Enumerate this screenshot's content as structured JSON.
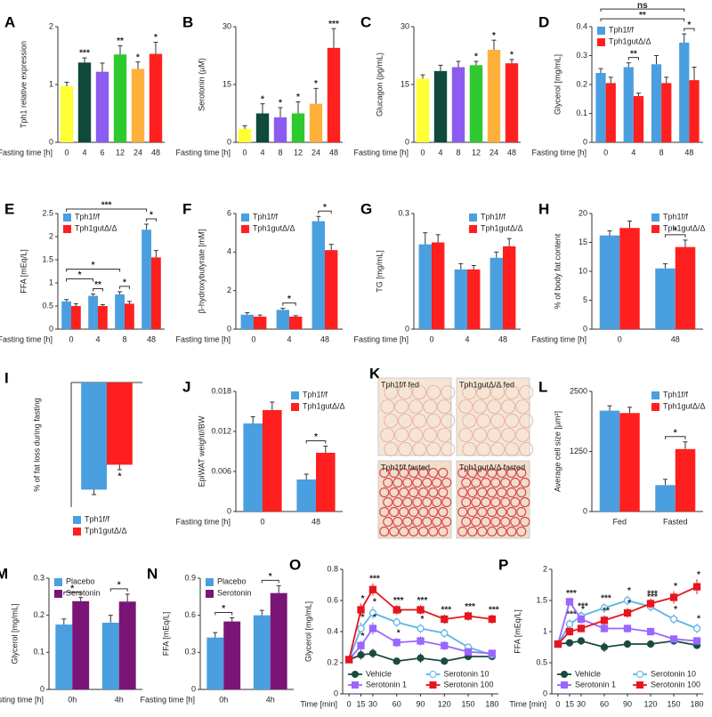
{
  "chart_data": [
    {
      "type": "bar",
      "title": "A",
      "ylabel": "Tph1 relative expression",
      "xlabel": "Fasting time [h]",
      "categories": [
        "0",
        "4",
        "6",
        "12",
        "24",
        "48"
      ],
      "values": [
        0.97,
        1.38,
        1.22,
        1.52,
        1.27,
        1.53
      ],
      "errors": [
        0.07,
        0.08,
        0.15,
        0.15,
        0.12,
        0.2
      ],
      "colors": [
        "#ffff33",
        "#0f4a3c",
        "#8c5cf0",
        "#2ec92e",
        "#ffb03b",
        "#ff2020"
      ],
      "significance": [
        null,
        "***",
        null,
        "**",
        "*",
        "*"
      ],
      "ylim": [
        0,
        2
      ],
      "yticks": [
        0,
        1,
        2
      ]
    },
    {
      "type": "bar",
      "title": "B",
      "ylabel": "Serotonin (µM)",
      "xlabel": "Fasting time [h]",
      "categories": [
        "0",
        "4",
        "8",
        "12",
        "24",
        "48"
      ],
      "values": [
        3.5,
        7.5,
        6.5,
        7.5,
        10,
        24.5
      ],
      "errors": [
        0.8,
        2.5,
        2.5,
        3,
        4,
        5
      ],
      "colors": [
        "#ffff33",
        "#0f4a3c",
        "#8c5cf0",
        "#2ec92e",
        "#ffb03b",
        "#ff2020"
      ],
      "significance": [
        null,
        "*",
        "*",
        "*",
        "*",
        "***"
      ],
      "ylim": [
        0,
        30
      ],
      "yticks": [
        0,
        15,
        30
      ]
    },
    {
      "type": "bar",
      "title": "C",
      "ylabel": "Glucagon (pg/mL)",
      "xlabel": "Fasting time [h]",
      "categories": [
        "0",
        "4",
        "8",
        "12",
        "24",
        "48"
      ],
      "values": [
        16.5,
        18.5,
        19.5,
        20,
        24,
        20.5
      ],
      "errors": [
        1,
        1.5,
        1.5,
        1,
        2.5,
        1
      ],
      "colors": [
        "#ffff33",
        "#0f4a3c",
        "#8c5cf0",
        "#2ec92e",
        "#ffb03b",
        "#ff2020"
      ],
      "significance": [
        null,
        null,
        null,
        "*",
        "*",
        "*"
      ],
      "ylim": [
        0,
        30
      ],
      "yticks": [
        0,
        15,
        30
      ]
    },
    {
      "type": "bar",
      "title": "D",
      "ylabel": "Glycerol [mg/mL]",
      "xlabel": "Fasting time [h]",
      "categories": [
        "0",
        "4",
        "8",
        "48"
      ],
      "legend": "top-left",
      "series": [
        {
          "name": "Tph1f/f",
          "color": "#4a9fe0",
          "values": [
            0.24,
            0.26,
            0.27,
            0.345
          ],
          "errors": [
            0.015,
            0.015,
            0.03,
            0.03
          ]
        },
        {
          "name": "Tph1gutΔ/Δ",
          "color": "#ff1f1f",
          "values": [
            0.205,
            0.16,
            0.205,
            0.215
          ],
          "errors": [
            0.02,
            0.01,
            0.02,
            0.045
          ]
        }
      ],
      "group_significance": [
        null,
        "**",
        null,
        "*"
      ],
      "brackets": [
        {
          "text": "**",
          "from": "0",
          "to": "48"
        },
        {
          "text": "ns",
          "from": "0",
          "to": "48"
        }
      ],
      "ylim": [
        0,
        0.4
      ],
      "yticks": [
        0,
        0.1,
        0.2,
        0.3,
        0.4
      ]
    },
    {
      "type": "bar",
      "title": "E",
      "ylabel": "FFA [mEq/L]",
      "xlabel": "Fasting time [h]",
      "categories": [
        "0",
        "4",
        "8",
        "48"
      ],
      "legend": "top-left",
      "series": [
        {
          "name": "Tph1f/f",
          "color": "#4a9fe0",
          "values": [
            0.6,
            0.72,
            0.75,
            2.15
          ],
          "errors": [
            0.04,
            0.04,
            0.06,
            0.12
          ]
        },
        {
          "name": "Tph1gutΔ/Δ",
          "color": "#ff1f1f",
          "values": [
            0.5,
            0.5,
            0.55,
            1.55
          ],
          "errors": [
            0.05,
            0.03,
            0.05,
            0.15
          ]
        }
      ],
      "group_significance": [
        null,
        "**",
        "*",
        "*"
      ],
      "brackets": [
        {
          "text": "*",
          "from": "0",
          "to": "4"
        },
        {
          "text": "*",
          "from": "0",
          "to": "8"
        },
        {
          "text": "***",
          "from": "0",
          "to": "48"
        }
      ],
      "ylim": [
        0,
        2.5
      ],
      "yticks": [
        0,
        0.5,
        1,
        1.5,
        2,
        2.5
      ]
    },
    {
      "type": "bar",
      "title": "F",
      "ylabel": "β-hydroxybutyrate [mM]",
      "xlabel": "Fasting time [h]",
      "categories": [
        "0",
        "4",
        "48"
      ],
      "legend": "top-left",
      "series": [
        {
          "name": "Tph1f/f",
          "color": "#4a9fe0",
          "values": [
            0.75,
            1.0,
            5.6
          ],
          "errors": [
            0.1,
            0.08,
            0.25
          ]
        },
        {
          "name": "Tph1gutΔ/Δ",
          "color": "#ff1f1f",
          "values": [
            0.65,
            0.65,
            4.1
          ],
          "errors": [
            0.08,
            0.05,
            0.3
          ]
        }
      ],
      "group_significance": [
        null,
        "*",
        "*"
      ],
      "ylim": [
        0,
        6
      ],
      "yticks": [
        0,
        2,
        4,
        6
      ]
    },
    {
      "type": "bar",
      "title": "G",
      "ylabel": "TG [mg/mL]",
      "xlabel": "Fasting time [h]",
      "categories": [
        "0",
        "4",
        "48"
      ],
      "legend": "top-right",
      "series": [
        {
          "name": "Tph1f/f",
          "color": "#4a9fe0",
          "values": [
            0.22,
            0.155,
            0.185
          ],
          "errors": [
            0.03,
            0.015,
            0.015
          ]
        },
        {
          "name": "Tph1gutΔ/Δ",
          "color": "#ff1f1f",
          "values": [
            0.225,
            0.155,
            0.215
          ],
          "errors": [
            0.02,
            0.01,
            0.02
          ]
        }
      ],
      "ylim": [
        0,
        0.3
      ],
      "yticks": [
        0,
        0.3
      ]
    },
    {
      "type": "bar",
      "title": "H",
      "ylabel": "% of body fat content",
      "xlabel": "Fasting time [h]",
      "categories": [
        "0",
        "48"
      ],
      "legend": "top-right",
      "series": [
        {
          "name": "Tph1f/f",
          "color": "#4a9fe0",
          "values": [
            16.2,
            10.5
          ],
          "errors": [
            0.8,
            0.8
          ]
        },
        {
          "name": "Tph1gutΔ/Δ",
          "color": "#ff1f1f",
          "values": [
            17.5,
            14.2
          ],
          "errors": [
            1.2,
            1.2
          ]
        }
      ],
      "group_significance": [
        null,
        "*"
      ],
      "ylim": [
        0,
        20
      ],
      "yticks": [
        0,
        5,
        10,
        15,
        20
      ]
    },
    {
      "type": "bar",
      "title": "I",
      "ylabel": "% of fat loss during fasting",
      "legend": "bottom",
      "series": [
        {
          "name": "Tph1f/f",
          "color": "#4a9fe0",
          "values": [
            -43
          ],
          "errors": [
            2
          ]
        },
        {
          "name": "Tph1gutΔ/Δ",
          "color": "#ff1f1f",
          "values": [
            -33
          ],
          "errors": [
            2
          ],
          "significance": [
            "*"
          ]
        }
      ],
      "ylim": [
        -50,
        0
      ]
    },
    {
      "type": "bar",
      "title": "J",
      "ylabel": "EpiWAT weight//BW",
      "xlabel": "Fasting time [h]",
      "categories": [
        "0",
        "48"
      ],
      "legend": "top-right",
      "series": [
        {
          "name": "Tph1f/f",
          "color": "#4a9fe0",
          "values": [
            0.0132,
            0.0048
          ],
          "errors": [
            0.001,
            0.0008
          ]
        },
        {
          "name": "Tph1gutΔ/Δ",
          "color": "#ff1f1f",
          "values": [
            0.0152,
            0.0088
          ],
          "errors": [
            0.0012,
            0.001
          ]
        }
      ],
      "group_significance": [
        null,
        "*"
      ],
      "ylim": [
        0,
        0.018
      ],
      "yticks": [
        0,
        0.006,
        0.012,
        0.018
      ]
    },
    {
      "type": "image",
      "title": "K",
      "labels": [
        "Tph1f/f fed",
        "Tph1gutΔ/Δ fed",
        "Tph1f/f fasted",
        "Tph1gutΔ/Δ fasted"
      ]
    },
    {
      "type": "bar",
      "title": "L",
      "ylabel": "Average cell size [µm²]",
      "categories": [
        "Fed",
        "Fasted"
      ],
      "legend": "top-right",
      "series": [
        {
          "name": "Tph1f/f",
          "color": "#4a9fe0",
          "values": [
            2100,
            550
          ],
          "errors": [
            100,
            120
          ]
        },
        {
          "name": "Tph1gutΔ/Δ",
          "color": "#ff1f1f",
          "values": [
            2050,
            1300
          ],
          "errors": [
            120,
            150
          ]
        }
      ],
      "group_significance": [
        null,
        "*"
      ],
      "ylim": [
        0,
        2500
      ],
      "yticks": [
        0,
        1250,
        2500
      ]
    },
    {
      "type": "bar",
      "title": "M",
      "ylabel": "Glycerol [mg/mL]",
      "xlabel": "Fasting time [h]",
      "categories": [
        "0h",
        "4h"
      ],
      "legend": "top-left",
      "series": [
        {
          "name": "Placebo",
          "color": "#4a9fe0",
          "values": [
            0.175,
            0.18
          ],
          "errors": [
            0.015,
            0.02
          ]
        },
        {
          "name": "Serotonin",
          "color": "#7a1577",
          "values": [
            0.238,
            0.237
          ],
          "errors": [
            0.01,
            0.02
          ]
        }
      ],
      "group_significance": [
        "*",
        "*"
      ],
      "ylim": [
        0,
        0.3
      ],
      "yticks": [
        0,
        0.1,
        0.2,
        0.3
      ]
    },
    {
      "type": "bar",
      "title": "N",
      "ylabel": "FFA [mEq/L]",
      "xlabel": "Fasting time [h]",
      "categories": [
        "0h",
        "4h"
      ],
      "legend": "top-left",
      "series": [
        {
          "name": "Placebo",
          "color": "#4a9fe0",
          "values": [
            0.42,
            0.6
          ],
          "errors": [
            0.04,
            0.04
          ]
        },
        {
          "name": "Serotonin",
          "color": "#7a1577",
          "values": [
            0.55,
            0.78
          ],
          "errors": [
            0.03,
            0.06
          ]
        }
      ],
      "group_significance": [
        "*",
        "*"
      ],
      "ylim": [
        0,
        0.9
      ],
      "yticks": [
        0,
        0.3,
        0.6,
        0.9
      ]
    },
    {
      "type": "line",
      "title": "O",
      "ylabel": "Glycerol [mg/mL]",
      "xlabel": "Time [min]",
      "legend": "bottom-inside",
      "x": [
        0,
        15,
        30,
        60,
        90,
        120,
        150,
        180
      ],
      "xlim": [
        -8,
        188
      ],
      "xticks": [
        0,
        15,
        30,
        60,
        90,
        120,
        150,
        180
      ],
      "ylim": [
        0,
        0.8
      ],
      "yticks": [
        0,
        0.2,
        0.4,
        0.6,
        0.8
      ],
      "series": [
        {
          "name": "Vehicle",
          "color": "#1a4a40",
          "marker": "circle",
          "values": [
            0.22,
            0.25,
            0.26,
            0.21,
            0.23,
            0.21,
            0.24,
            0.24
          ],
          "errors": [
            0.02,
            0.03,
            0.03,
            0.02,
            0.03,
            0.02,
            0.02,
            0.02
          ]
        },
        {
          "name": "Serotonin 10",
          "color": "#5ab4e8",
          "marker": "circle",
          "hollow": true,
          "values": [
            0.22,
            0.42,
            0.52,
            0.46,
            0.42,
            0.39,
            0.3,
            0.25
          ],
          "errors": [
            0.02,
            0.04,
            0.04,
            0.03,
            0.03,
            0.03,
            0.02,
            0.02
          ],
          "significance": [
            null,
            "*",
            "*",
            "**",
            "*",
            "*",
            null,
            null
          ]
        },
        {
          "name": "Serotonin 1",
          "color": "#9966ff",
          "marker": "square",
          "values": [
            0.22,
            0.31,
            0.42,
            0.33,
            0.34,
            0.31,
            0.27,
            0.26
          ],
          "errors": [
            0.02,
            0.03,
            0.04,
            0.03,
            0.03,
            0.03,
            0.02,
            0.02
          ],
          "significance": [
            null,
            "*",
            "*",
            "*",
            null,
            null,
            null,
            null
          ]
        },
        {
          "name": "Serotonin 100",
          "color": "#e8141e",
          "marker": "square",
          "values": [
            0.22,
            0.54,
            0.67,
            0.54,
            0.54,
            0.48,
            0.5,
            0.48
          ],
          "errors": [
            0.02,
            0.04,
            0.04,
            0.03,
            0.03,
            0.03,
            0.03,
            0.03
          ],
          "significance": [
            null,
            "*",
            "***",
            "***",
            "***",
            "***",
            "***",
            "***"
          ]
        }
      ]
    },
    {
      "type": "line",
      "title": "P",
      "ylabel": "FFA [mEq/L]",
      "xlabel": "Time [min]",
      "legend": "bottom-inside",
      "x": [
        0,
        15,
        30,
        60,
        90,
        120,
        150,
        180
      ],
      "xlim": [
        -8,
        188
      ],
      "xticks": [
        0,
        15,
        30,
        60,
        90,
        120,
        150,
        180
      ],
      "ylim": [
        0,
        2
      ],
      "yticks": [
        0,
        0.5,
        1,
        1.5,
        2
      ],
      "series": [
        {
          "name": "Vehicle",
          "color": "#1a4a40",
          "marker": "circle",
          "values": [
            0.8,
            0.82,
            0.85,
            0.75,
            0.8,
            0.8,
            0.85,
            0.78
          ],
          "errors": [
            0.05,
            0.06,
            0.06,
            0.08,
            0.06,
            0.06,
            0.06,
            0.06
          ]
        },
        {
          "name": "Serotonin 10",
          "color": "#5ab4e8",
          "marker": "circle",
          "hollow": true,
          "values": [
            0.8,
            1.12,
            1.25,
            1.38,
            1.5,
            1.4,
            1.2,
            1.05
          ],
          "errors": [
            0.05,
            0.08,
            0.08,
            0.08,
            0.08,
            0.08,
            0.08,
            0.08
          ],
          "significance": [
            null,
            "***",
            "***",
            "***",
            "*",
            "***",
            "*",
            "*"
          ]
        },
        {
          "name": "Serotonin 1",
          "color": "#9966ff",
          "marker": "square",
          "values": [
            0.8,
            1.48,
            1.2,
            1.05,
            1.05,
            1.0,
            0.88,
            0.85
          ],
          "errors": [
            0.05,
            0.06,
            0.08,
            0.06,
            0.06,
            0.06,
            0.06,
            0.06
          ],
          "significance": [
            null,
            "***",
            "*",
            "*",
            null,
            null,
            null,
            null
          ]
        },
        {
          "name": "Serotonin 100",
          "color": "#e8141e",
          "marker": "square",
          "values": [
            0.8,
            1.0,
            1.05,
            1.18,
            1.3,
            1.45,
            1.55,
            1.72
          ],
          "errors": [
            0.05,
            0.06,
            0.06,
            0.08,
            0.08,
            0.08,
            0.1,
            0.12
          ],
          "significance": [
            null,
            null,
            null,
            "**",
            "*",
            "***",
            "*",
            "*"
          ]
        }
      ]
    }
  ]
}
